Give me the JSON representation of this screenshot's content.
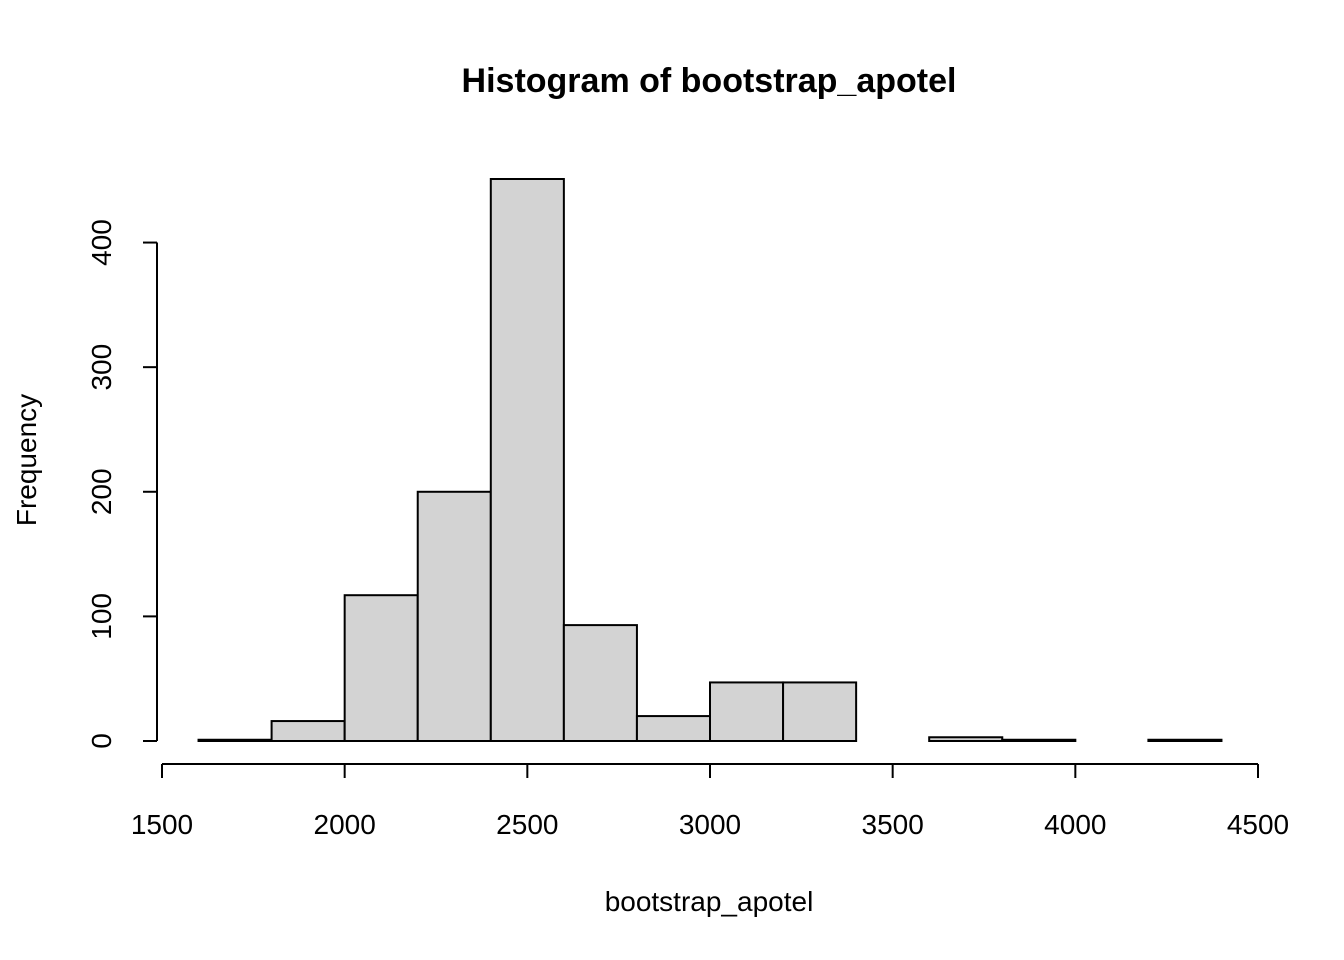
{
  "chart_data": {
    "type": "bar",
    "title": "Histogram of bootstrap_apotel",
    "xlabel": "bootstrap_apotel",
    "ylabel": "Frequency",
    "bin_edges": [
      1600,
      1800,
      2000,
      2200,
      2400,
      2600,
      2800,
      3000,
      3200,
      3400,
      3600,
      3800,
      4000,
      4200,
      4400
    ],
    "values": [
      1,
      16,
      117,
      200,
      451,
      93,
      20,
      47,
      47,
      0,
      3,
      1,
      0,
      1
    ],
    "xlim": [
      1500,
      4500
    ],
    "ylim": [
      0,
      451
    ],
    "x_ticks": [
      1500,
      2000,
      2500,
      3000,
      3500,
      4000,
      4500
    ],
    "y_ticks": [
      0,
      100,
      200,
      300,
      400
    ],
    "bar_color": "#d3d3d3",
    "edge_color": "#000000",
    "grid": false
  }
}
